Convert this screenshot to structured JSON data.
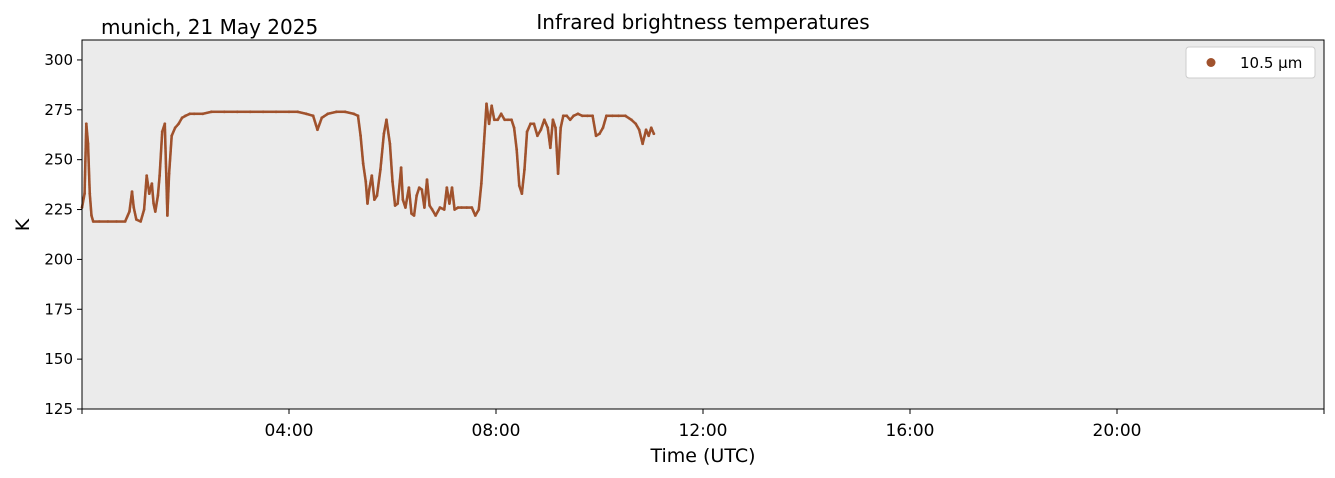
{
  "chart_data": {
    "type": "scatter",
    "title": "Infrared brightness temperatures",
    "subtitle": "munich, 21 May 2025",
    "xlabel": "Time (UTC)",
    "ylabel": "K",
    "xlim": [
      "00:00",
      "24:00"
    ],
    "ylim": [
      125,
      310
    ],
    "y_ticks": [
      "125",
      "150",
      "175",
      "200",
      "225",
      "250",
      "275",
      "300"
    ],
    "x_ticks": [
      "04:00",
      "08:00",
      "12:00",
      "16:00",
      "20:00"
    ],
    "grid": false,
    "background_color": "#ebebeb",
    "legend_position": "top-right",
    "series": [
      {
        "name": "10.5 µm",
        "color": "#a0522d",
        "marker": "dot",
        "points": [
          [
            "00:00",
            226
          ],
          [
            "00:03",
            233
          ],
          [
            "00:05",
            268
          ],
          [
            "00:07",
            258
          ],
          [
            "00:09",
            233
          ],
          [
            "00:11",
            222
          ],
          [
            "00:13",
            219
          ],
          [
            "00:20",
            219
          ],
          [
            "00:30",
            219
          ],
          [
            "00:40",
            219
          ],
          [
            "00:50",
            219
          ],
          [
            "00:55",
            224
          ],
          [
            "00:58",
            234
          ],
          [
            "01:00",
            226
          ],
          [
            "01:03",
            220
          ],
          [
            "01:08",
            219
          ],
          [
            "01:12",
            225
          ],
          [
            "01:15",
            242
          ],
          [
            "01:18",
            233
          ],
          [
            "01:21",
            238
          ],
          [
            "01:23",
            228
          ],
          [
            "01:25",
            224
          ],
          [
            "01:28",
            232
          ],
          [
            "01:30",
            242
          ],
          [
            "01:33",
            264
          ],
          [
            "01:36",
            268
          ],
          [
            "01:39",
            222
          ],
          [
            "01:41",
            243
          ],
          [
            "01:44",
            262
          ],
          [
            "01:48",
            266
          ],
          [
            "01:52",
            268
          ],
          [
            "01:56",
            271
          ],
          [
            "02:00",
            272
          ],
          [
            "02:05",
            273
          ],
          [
            "02:10",
            273
          ],
          [
            "02:20",
            273
          ],
          [
            "02:30",
            274
          ],
          [
            "02:45",
            274
          ],
          [
            "03:00",
            274
          ],
          [
            "03:15",
            274
          ],
          [
            "03:30",
            274
          ],
          [
            "03:45",
            274
          ],
          [
            "04:00",
            274
          ],
          [
            "04:10",
            274
          ],
          [
            "04:20",
            273
          ],
          [
            "04:28",
            272
          ],
          [
            "04:33",
            265
          ],
          [
            "04:38",
            271
          ],
          [
            "04:45",
            273
          ],
          [
            "04:55",
            274
          ],
          [
            "05:05",
            274
          ],
          [
            "05:15",
            273
          ],
          [
            "05:20",
            272
          ],
          [
            "05:23",
            262
          ],
          [
            "05:26",
            248
          ],
          [
            "05:29",
            239
          ],
          [
            "05:31",
            228
          ],
          [
            "05:33",
            235
          ],
          [
            "05:36",
            242
          ],
          [
            "05:39",
            230
          ],
          [
            "05:42",
            232
          ],
          [
            "05:46",
            245
          ],
          [
            "05:50",
            263
          ],
          [
            "05:53",
            270
          ],
          [
            "05:57",
            258
          ],
          [
            "06:00",
            239
          ],
          [
            "06:03",
            227
          ],
          [
            "06:06",
            228
          ],
          [
            "06:10",
            246
          ],
          [
            "06:12",
            230
          ],
          [
            "06:15",
            226
          ],
          [
            "06:19",
            236
          ],
          [
            "06:22",
            223
          ],
          [
            "06:25",
            222
          ],
          [
            "06:28",
            232
          ],
          [
            "06:31",
            236
          ],
          [
            "06:34",
            235
          ],
          [
            "06:37",
            226
          ],
          [
            "06:40",
            240
          ],
          [
            "06:43",
            227
          ],
          [
            "06:46",
            225
          ],
          [
            "06:50",
            222
          ],
          [
            "06:55",
            226
          ],
          [
            "07:00",
            225
          ],
          [
            "07:03",
            236
          ],
          [
            "07:06",
            228
          ],
          [
            "07:09",
            236
          ],
          [
            "07:12",
            225
          ],
          [
            "07:16",
            226
          ],
          [
            "07:20",
            226
          ],
          [
            "07:26",
            226
          ],
          [
            "07:32",
            226
          ],
          [
            "07:36",
            222
          ],
          [
            "07:40",
            225
          ],
          [
            "07:43",
            238
          ],
          [
            "07:46",
            258
          ],
          [
            "07:49",
            278
          ],
          [
            "07:52",
            268
          ],
          [
            "07:55",
            277
          ],
          [
            "07:58",
            270
          ],
          [
            "08:02",
            270
          ],
          [
            "08:06",
            273
          ],
          [
            "08:10",
            270
          ],
          [
            "08:14",
            270
          ],
          [
            "08:18",
            270
          ],
          [
            "08:21",
            266
          ],
          [
            "08:24",
            255
          ],
          [
            "08:27",
            237
          ],
          [
            "08:30",
            233
          ],
          [
            "08:33",
            245
          ],
          [
            "08:36",
            264
          ],
          [
            "08:40",
            268
          ],
          [
            "08:44",
            268
          ],
          [
            "08:48",
            262
          ],
          [
            "08:52",
            265
          ],
          [
            "08:56",
            270
          ],
          [
            "09:00",
            266
          ],
          [
            "09:03",
            256
          ],
          [
            "09:06",
            270
          ],
          [
            "09:09",
            266
          ],
          [
            "09:12",
            243
          ],
          [
            "09:15",
            266
          ],
          [
            "09:18",
            272
          ],
          [
            "09:22",
            272
          ],
          [
            "09:26",
            270
          ],
          [
            "09:30",
            272
          ],
          [
            "09:35",
            273
          ],
          [
            "09:40",
            272
          ],
          [
            "09:46",
            272
          ],
          [
            "09:52",
            272
          ],
          [
            "09:56",
            262
          ],
          [
            "10:00",
            263
          ],
          [
            "10:04",
            266
          ],
          [
            "10:08",
            272
          ],
          [
            "10:15",
            272
          ],
          [
            "10:22",
            272
          ],
          [
            "10:30",
            272
          ],
          [
            "10:37",
            270
          ],
          [
            "10:42",
            268
          ],
          [
            "10:46",
            265
          ],
          [
            "10:50",
            258
          ],
          [
            "10:54",
            265
          ],
          [
            "10:57",
            262
          ],
          [
            "11:00",
            266
          ],
          [
            "11:03",
            263
          ]
        ]
      }
    ]
  }
}
